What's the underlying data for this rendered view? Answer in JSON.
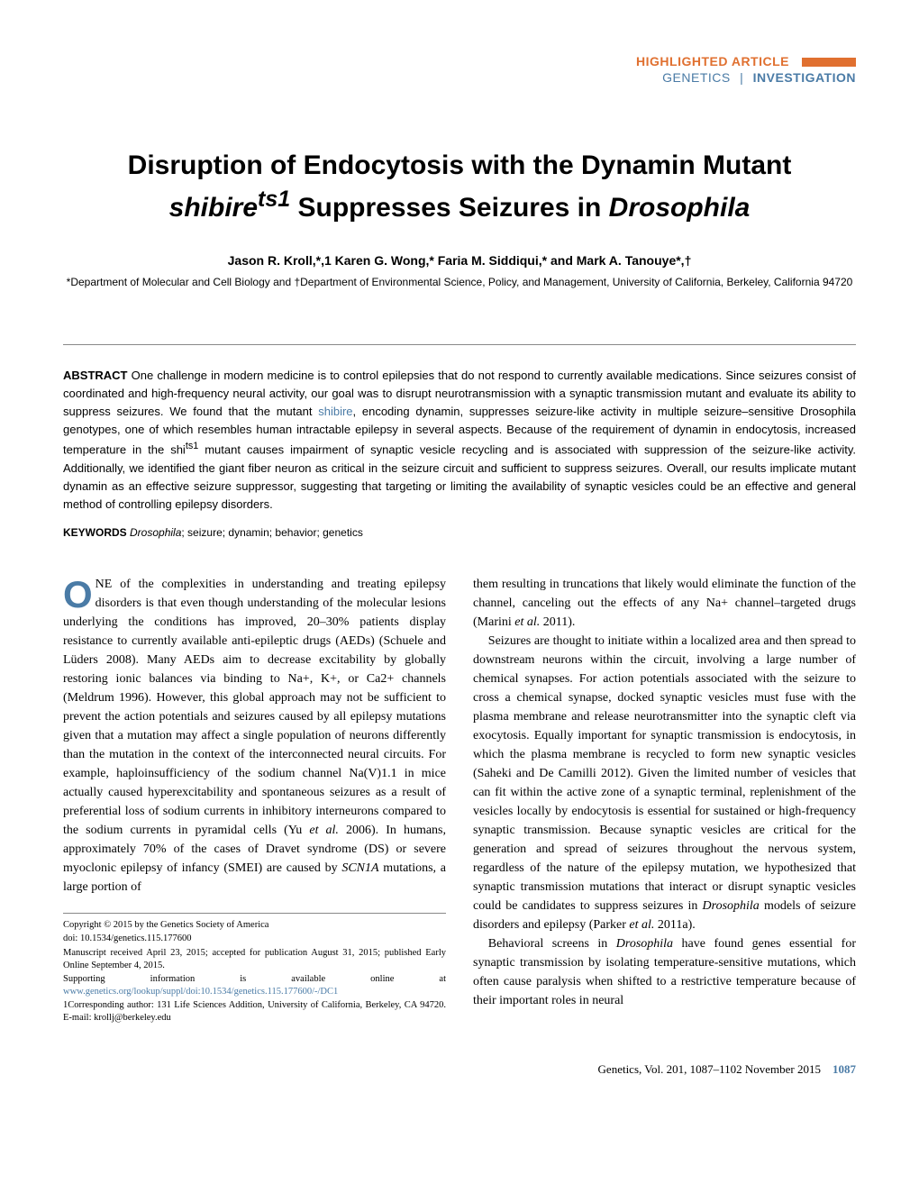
{
  "header": {
    "highlighted_label": "HIGHLIGHTED ARTICLE",
    "highlighted_color": "#e07030",
    "genetics_label": "GENETICS",
    "investigation_label": "INVESTIGATION",
    "link_color": "#4a7ba6",
    "bar_color": "#e07030"
  },
  "title": {
    "line1": "Disruption of Endocytosis with the Dynamin Mutant",
    "line2_prefix": "shibire",
    "line2_super": "ts1",
    "line2_mid": " Suppresses Seizures in ",
    "line2_suffix": "Drosophila"
  },
  "authors": "Jason R. Kroll,*,1 Karen G. Wong,* Faria M. Siddiqui,* and Mark A. Tanouye*,†",
  "affiliations": "*Department of Molecular and Cell Biology and †Department of Environmental Science, Policy, and Management, University of California, Berkeley, California 94720",
  "abstract": {
    "label": "ABSTRACT",
    "text_before_link": " One challenge in modern medicine is to control epilepsies that do not respond to currently available medications. Since seizures consist of coordinated and high-frequency neural activity, our goal was to disrupt neurotransmission with a synaptic transmission mutant and evaluate its ability to suppress seizures. We found that the mutant ",
    "link_text": "shibire",
    "text_after_link_1": ", encoding dynamin, suppresses seizure-like activity in multiple seizure–sensitive ",
    "italic_1": "Drosophila",
    "text_mid": " genotypes, one of which resembles human intractable epilepsy in several aspects. Because of the requirement of dynamin in endocytosis, increased temperature in the ",
    "italic_2": "shi",
    "super_2": "ts1",
    "text_end": " mutant causes impairment of synaptic vesicle recycling and is associated with suppression of the seizure-like activity. Additionally, we identified the giant fiber neuron as critical in the seizure circuit and sufficient to suppress seizures. Overall, our results implicate mutant dynamin as an effective seizure suppressor, suggesting that targeting or limiting the availability of synaptic vesicles could be an effective and general method of controlling epilepsy disorders."
  },
  "keywords": {
    "label": "KEYWORDS",
    "italic_1": "Drosophila",
    "rest": "; seizure; dynamin; behavior; genetics"
  },
  "body": {
    "dropcap_letter": "O",
    "dropcap_color": "#4a7ba6",
    "col1_p1": "NE of the complexities in understanding and treating epilepsy disorders is that even though understanding of the molecular lesions underlying the conditions has improved, 20–30% patients display resistance to currently available anti-epileptic drugs (AEDs) (Schuele and Lüders 2008). Many AEDs aim to decrease excitability by globally restoring ionic balances via binding to Na+, K+, or Ca2+ channels (Meldrum 1996). However, this global approach may not be sufficient to prevent the action potentials and seizures caused by all epilepsy mutations given that a mutation may affect a single population of neurons differently than the mutation in the context of the interconnected neural circuits. For example, haploinsufficiency of the sodium channel Na(V)1.1 in mice actually caused hyperexcitability and spontaneous seizures as a result of preferential loss of sodium currents in inhibitory interneurons compared to the sodium currents in pyramidal cells (Yu ",
    "col1_p1_italic": "et al.",
    "col1_p1_after": " 2006). In humans, approximately 70% of the cases of Dravet syndrome (DS) or severe myoclonic epilepsy of infancy (SMEI) are caused by ",
    "col1_p1_italic2": "SCN1A",
    "col1_p1_end": " mutations, a large portion of",
    "col2_p1": "them resulting in truncations that likely would eliminate the function of the channel, canceling out the effects of any Na+ channel–targeted drugs (Marini ",
    "col2_p1_italic": "et al.",
    "col2_p1_end": " 2011).",
    "col2_p2_a": "Seizures are thought to initiate within a localized area and then spread to downstream neurons within the circuit, involving a large number of chemical synapses. For action potentials associated with the seizure to cross a chemical synapse, docked synaptic vesicles must fuse with the plasma membrane and release neurotransmitter into the synaptic cleft via exocytosis. Equally important for synaptic transmission is endocytosis, in which the plasma membrane is recycled to form new synaptic vesicles (Saheki and De Camilli 2012). Given the limited number of vesicles that can fit within the active zone of a synaptic terminal, replenishment of the vesicles locally by endocytosis is essential for sustained or high-frequency synaptic transmission. Because synaptic vesicles are critical for the generation and spread of seizures throughout the nervous system, regardless of the nature of the epilepsy mutation, we hypothesized that synaptic transmission mutations that interact or disrupt synaptic vesicles could be candidates to suppress seizures in ",
    "col2_p2_italic": "Drosophila",
    "col2_p2_b": " models of seizure disorders and epilepsy (Parker ",
    "col2_p2_italic2": "et al.",
    "col2_p2_end": " 2011a).",
    "col2_p3_a": "Behavioral screens in ",
    "col2_p3_italic": "Drosophila",
    "col2_p3_b": " have found genes essential for synaptic transmission by isolating temperature-sensitive mutations, which often cause paralysis when shifted to a restrictive temperature because of their important roles in neural"
  },
  "footnotes": {
    "copyright": "Copyright © 2015 by the Genetics Society of America",
    "doi": "doi: 10.1534/genetics.115.177600",
    "received": "Manuscript received April 23, 2015; accepted for publication August 31, 2015; published Early Online September 4, 2015.",
    "support_pre": "Supporting information is available online at ",
    "support_link": "www.genetics.org/lookup/suppl/doi:10.1534/genetics.115.177600/-/DC1",
    "corresponding": "1Corresponding author: 131 Life Sciences Addition, University of California, Berkeley, CA 94720. E-mail: krollj@berkeley.edu"
  },
  "footer": {
    "citation": "Genetics, Vol. 201, 1087–1102   November 2015",
    "page_number": "1087",
    "pnum_color": "#4a7ba6"
  },
  "colors": {
    "link_color": "#4a7ba6",
    "accent_color": "#e07030",
    "text_color": "#000000",
    "background": "#ffffff"
  }
}
